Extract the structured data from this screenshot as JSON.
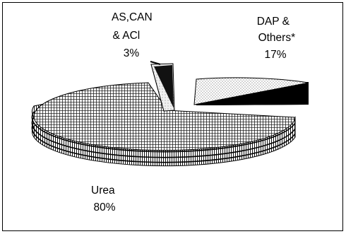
{
  "chart_data": {
    "type": "pie",
    "title": "",
    "slices": [
      {
        "label_lines": [
          "Urea",
          "80%"
        ],
        "value": 80
      },
      {
        "label_lines": [
          "AS,CAN",
          "& ACl",
          "3%"
        ],
        "value": 3
      },
      {
        "label_lines": [
          "DAP &",
          "Others*",
          "17%"
        ],
        "value": 17
      }
    ],
    "exploded": true,
    "three_d": true
  },
  "colors": {
    "ink": "#000000",
    "background": "#ffffff",
    "urea_fill": "#bdbdbd",
    "as_fill": "#ffffff",
    "dap_fill": "#e6e6e6"
  }
}
